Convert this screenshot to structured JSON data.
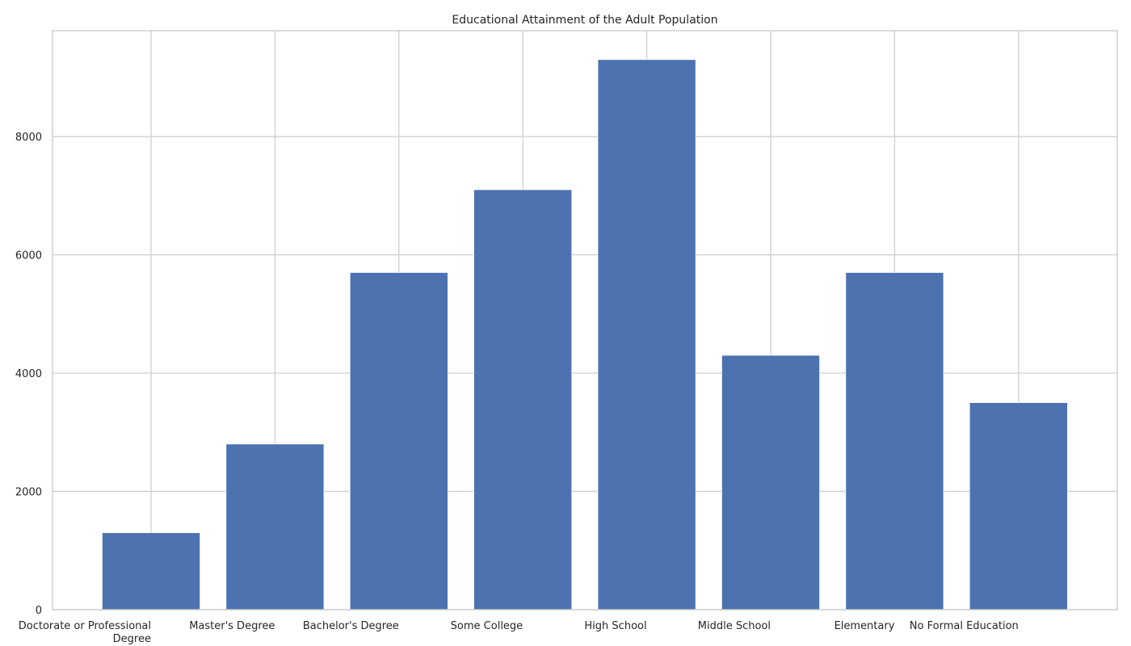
{
  "chart_data": {
    "type": "bar",
    "title": "Educational Attainment of the Adult Population",
    "xlabel": "",
    "ylabel": "",
    "categories": [
      [
        "Doctorate or Professional",
        "Degree"
      ],
      [
        "Master's Degree"
      ],
      [
        "Bachelor's Degree"
      ],
      [
        "Some College"
      ],
      [
        "High School"
      ],
      [
        "Middle School"
      ],
      [
        "Elementary"
      ],
      [
        "No Formal Education"
      ]
    ],
    "values": [
      1300,
      2800,
      5700,
      7100,
      9300,
      4300,
      5700,
      3500
    ],
    "ylim": [
      0,
      9790
    ],
    "yticks": [
      0,
      2000,
      4000,
      6000,
      8000
    ],
    "grid": true,
    "colors": {
      "bar": "#4c72b0",
      "grid": "#cccccc",
      "axis": "#cccccc",
      "text": "#262626"
    }
  }
}
